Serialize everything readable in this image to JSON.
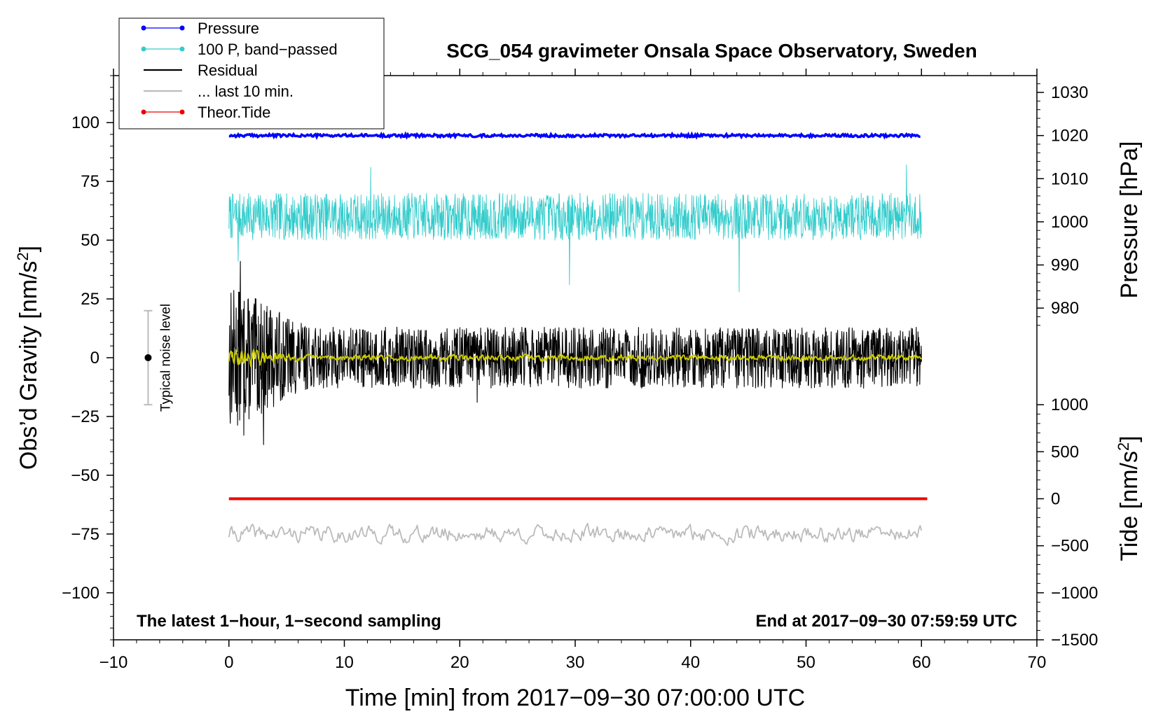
{
  "chart_data": {
    "type": "line",
    "title": "SCG_054 gravimeter Onsala Space Observatory, Sweden",
    "xlabel": "Time [min] from 2017−09−30 07:00:00 UTC",
    "ylabel_left": "Obs’d Gravity [nm/s",
    "ylabel_left_sup": "2",
    "ylabel_left_end": "]",
    "ylabel_right_top": "Pressure [hPa]",
    "ylabel_right_bottom": "Tide [nm/s",
    "ylabel_right_bottom_sup": "2",
    "ylabel_right_bottom_end": "]",
    "xlim": [
      -10,
      70
    ],
    "ylim_left": [
      -120,
      120
    ],
    "x_ticks": [
      -10,
      0,
      10,
      20,
      30,
      40,
      50,
      60,
      70
    ],
    "x_tick_labels": [
      "−10",
      "0",
      "10",
      "20",
      "30",
      "40",
      "50",
      "60",
      "70"
    ],
    "y_left_ticks": [
      100,
      75,
      50,
      25,
      0,
      -25,
      -50,
      -75,
      -100
    ],
    "y_left_tick_labels": [
      "100",
      "75",
      "50",
      "25",
      "0",
      "−25",
      "−50",
      "−75",
      "−100"
    ],
    "pressure_axis": {
      "ticks": [
        1030,
        1020,
        1010,
        1000,
        990,
        980
      ],
      "tick_labels": [
        "1030",
        "1020",
        "1010",
        "1000",
        "990",
        "980"
      ],
      "maps_1020_to_gravity": 94.5,
      "hpa_per_gravity_unit": 0.545
    },
    "tide_axis": {
      "ticks": [
        1000,
        500,
        0,
        -500,
        -1000,
        -1500
      ],
      "tick_labels": [
        "1000",
        "500",
        "0",
        "−500",
        "−1000",
        "−1500"
      ],
      "maps_0_to_gravity": -60,
      "tide_per_gravity_unit": 25
    },
    "series": [
      {
        "name": "Pressure",
        "color": "#0000ff",
        "kind": "line",
        "x_range": [
          0,
          60
        ],
        "gravity_level": 94.5,
        "noise_amplitude": 0.6
      },
      {
        "name": "100 P, band−passed",
        "color": "#33cccc",
        "kind": "oscillating",
        "x_range": [
          0,
          60
        ],
        "center": 60,
        "amplitude": 10,
        "spikes": [
          {
            "x": 0.8,
            "y": 41
          },
          {
            "x": 12.3,
            "y": 81
          },
          {
            "x": 29.5,
            "y": 31
          },
          {
            "x": 44.2,
            "y": 28
          },
          {
            "x": 58.7,
            "y": 82
          }
        ]
      },
      {
        "name": "Residual",
        "color": "#000000",
        "kind": "oscillating",
        "x_range": [
          0,
          60
        ],
        "center": 0,
        "amplitude": 13,
        "spikes": [
          {
            "x": 1.0,
            "y": 41
          },
          {
            "x": 3.0,
            "y": -37
          },
          {
            "x": 1.3,
            "y": -33
          },
          {
            "x": 21.5,
            "y": -19
          }
        ]
      },
      {
        "name": "Residual smoothed",
        "color": "#cccc00",
        "kind": "oscillating",
        "x_range": [
          0,
          60
        ],
        "center": 0,
        "amplitude": 2
      },
      {
        "name": "... last 10 min.",
        "color": "#bbbbbb",
        "kind": "oscillating",
        "x_range": [
          0,
          60
        ],
        "center": -75,
        "amplitude": 6
      },
      {
        "name": "Theor.Tide",
        "color": "#ee0000",
        "kind": "line",
        "x_range": [
          0,
          60.5
        ],
        "gravity_level": -60
      }
    ],
    "legend": [
      {
        "label": "Pressure",
        "color": "#0000ff",
        "marker": true
      },
      {
        "label": "100 P, band−passed",
        "color": "#33cccc",
        "marker": true
      },
      {
        "label": "Residual",
        "color": "#000000",
        "marker": false
      },
      {
        "label": "... last 10 min.",
        "color": "#bbbbbb",
        "marker": false
      },
      {
        "label": "Theor.Tide",
        "color": "#ee0000",
        "marker": true
      }
    ],
    "legend_position": "top-left",
    "noise_level": {
      "label": "Typical noise level",
      "x": -7,
      "center": 0,
      "half_range": 20
    },
    "annotations": {
      "bottom_left": "The latest 1−hour, 1−second sampling",
      "bottom_right": "End at 2017−09−30 07:59:59 UTC"
    }
  }
}
